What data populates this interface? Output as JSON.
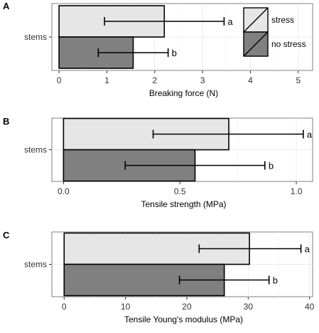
{
  "figure": {
    "legend_entries": [
      {
        "label": "stress",
        "fill": "#e6e6e6"
      },
      {
        "label": "no stress",
        "fill": "#808080"
      }
    ]
  },
  "colors": {
    "stress": "#e6e6e6",
    "no_stress": "#808080",
    "panel_background": "#ffffff",
    "grid": "#ebebeb",
    "axis_text": "#333333"
  },
  "chart_data": [
    {
      "panel_label": "A",
      "type": "bar",
      "orientation": "horizontal",
      "categories": [
        "stems"
      ],
      "xlabel": "Breaking force (N)",
      "xlim": [
        -0.15,
        5.3
      ],
      "ticks": [
        0,
        1,
        2,
        3,
        4,
        5
      ],
      "tick_labels": [
        "0",
        "1",
        "2",
        "3",
        "4",
        "5"
      ],
      "grid": true,
      "legend_position": "right-inside",
      "series": [
        {
          "name": "stress",
          "value": 2.2,
          "error_low": 0.95,
          "error_high": 3.45,
          "letter": "a"
        },
        {
          "name": "no stress",
          "value": 1.55,
          "error_low": 0.82,
          "error_high": 2.28,
          "letter": "b"
        }
      ]
    },
    {
      "panel_label": "B",
      "type": "bar",
      "orientation": "horizontal",
      "categories": [
        "stems"
      ],
      "xlabel": "Tensile strength (MPa)",
      "xlim": [
        -0.05,
        1.07
      ],
      "ticks": [
        0.0,
        0.5,
        1.0
      ],
      "tick_labels": [
        "0.0",
        "0.5",
        "1.0"
      ],
      "grid": true,
      "series": [
        {
          "name": "stress",
          "value": 0.71,
          "error_low": 0.385,
          "error_high": 1.03,
          "letter": "a"
        },
        {
          "name": "no stress",
          "value": 0.565,
          "error_low": 0.265,
          "error_high": 0.865,
          "letter": "b"
        }
      ]
    },
    {
      "panel_label": "C",
      "type": "bar",
      "orientation": "horizontal",
      "categories": [
        "stems"
      ],
      "xlabel": "Tensile Young's modulus (MPa)",
      "xlim": [
        -2,
        40.5
      ],
      "ticks": [
        0,
        10,
        20,
        30,
        40
      ],
      "tick_labels": [
        "0",
        "10",
        "20",
        "30",
        "40"
      ],
      "grid": true,
      "series": [
        {
          "name": "stress",
          "value": 30.2,
          "error_low": 22.0,
          "error_high": 38.6,
          "letter": "a"
        },
        {
          "name": "no stress",
          "value": 26.1,
          "error_low": 18.8,
          "error_high": 33.4,
          "letter": "b"
        }
      ]
    }
  ]
}
